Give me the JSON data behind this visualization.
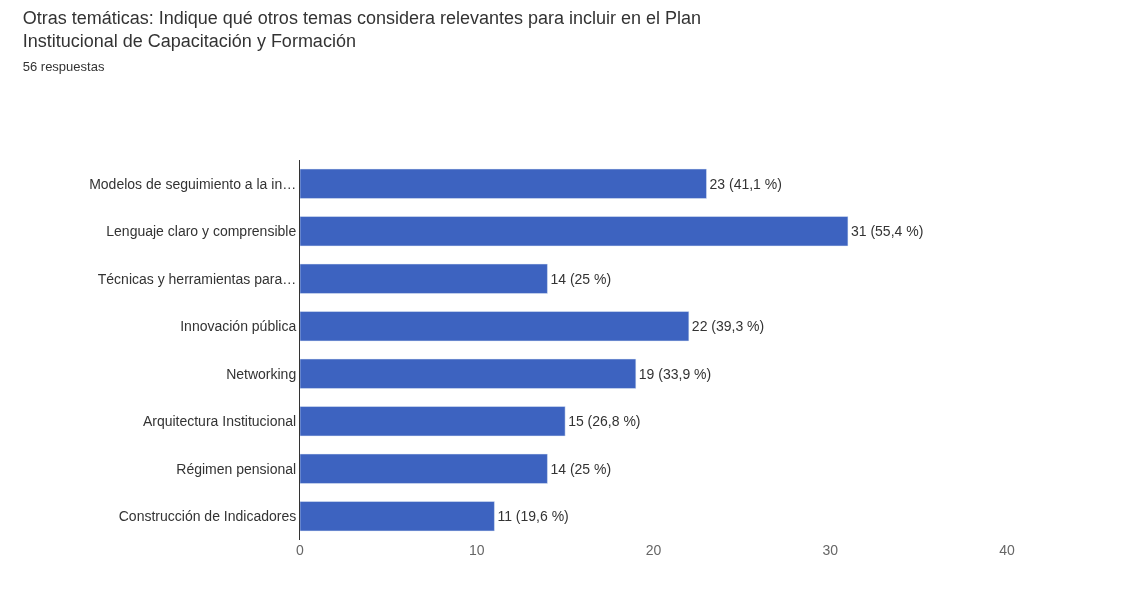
{
  "chart_data": {
    "type": "bar",
    "orientation": "horizontal",
    "title": "Otras temáticas: Indique qué otros temas considera relevantes para incluir en el Plan Institucional de Capacitación y Formación",
    "subtitle": "56 respuestas",
    "categories": [
      "Modelos de seguimiento a la in…",
      "Lenguaje claro y comprensible",
      "Técnicas y herramientas para…",
      "Innovación pública",
      "Networking",
      "Arquitectura Institucional",
      "Régimen pensional",
      "Construcción de Indicadores"
    ],
    "values": [
      23,
      31,
      14,
      22,
      19,
      15,
      14,
      11
    ],
    "value_labels": [
      "23 (41,1 %)",
      "31 (55,4 %)",
      "14 (25 %)",
      "22 (39,3 %)",
      "19 (33,9 %)",
      "15 (26,8 %)",
      "14 (25 %)",
      "11 (19,6 %)"
    ],
    "color": "#3d63c0",
    "xlim": [
      0,
      40
    ],
    "xticks": [
      0,
      10,
      20,
      30,
      40
    ],
    "grid": false,
    "legend": false
  }
}
